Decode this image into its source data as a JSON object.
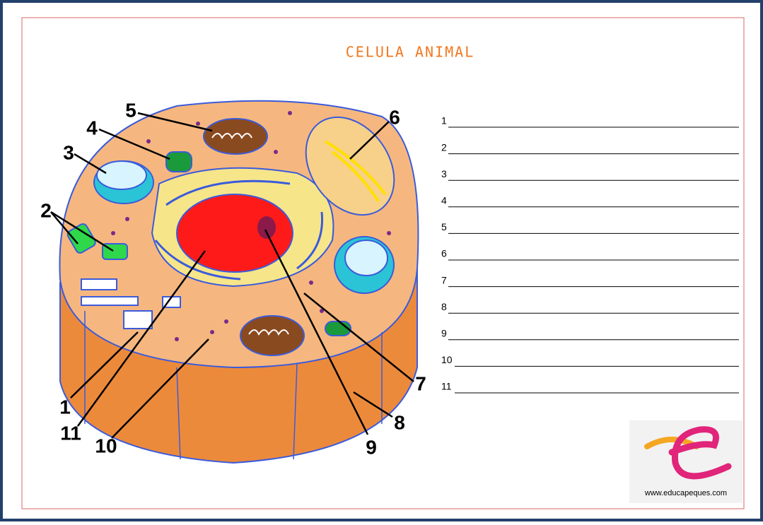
{
  "header": {
    "title": "CELULA ANIMAL"
  },
  "diagram": {
    "labels": [
      "1",
      "2",
      "3",
      "4",
      "5",
      "6",
      "7",
      "8",
      "9",
      "10",
      "11"
    ]
  },
  "answers": {
    "numbers": [
      "1",
      "2",
      "3",
      "4",
      "5",
      "6",
      "7",
      "8",
      "9",
      "10",
      "11"
    ]
  },
  "logo": {
    "url": "www.educapeques.com"
  }
}
